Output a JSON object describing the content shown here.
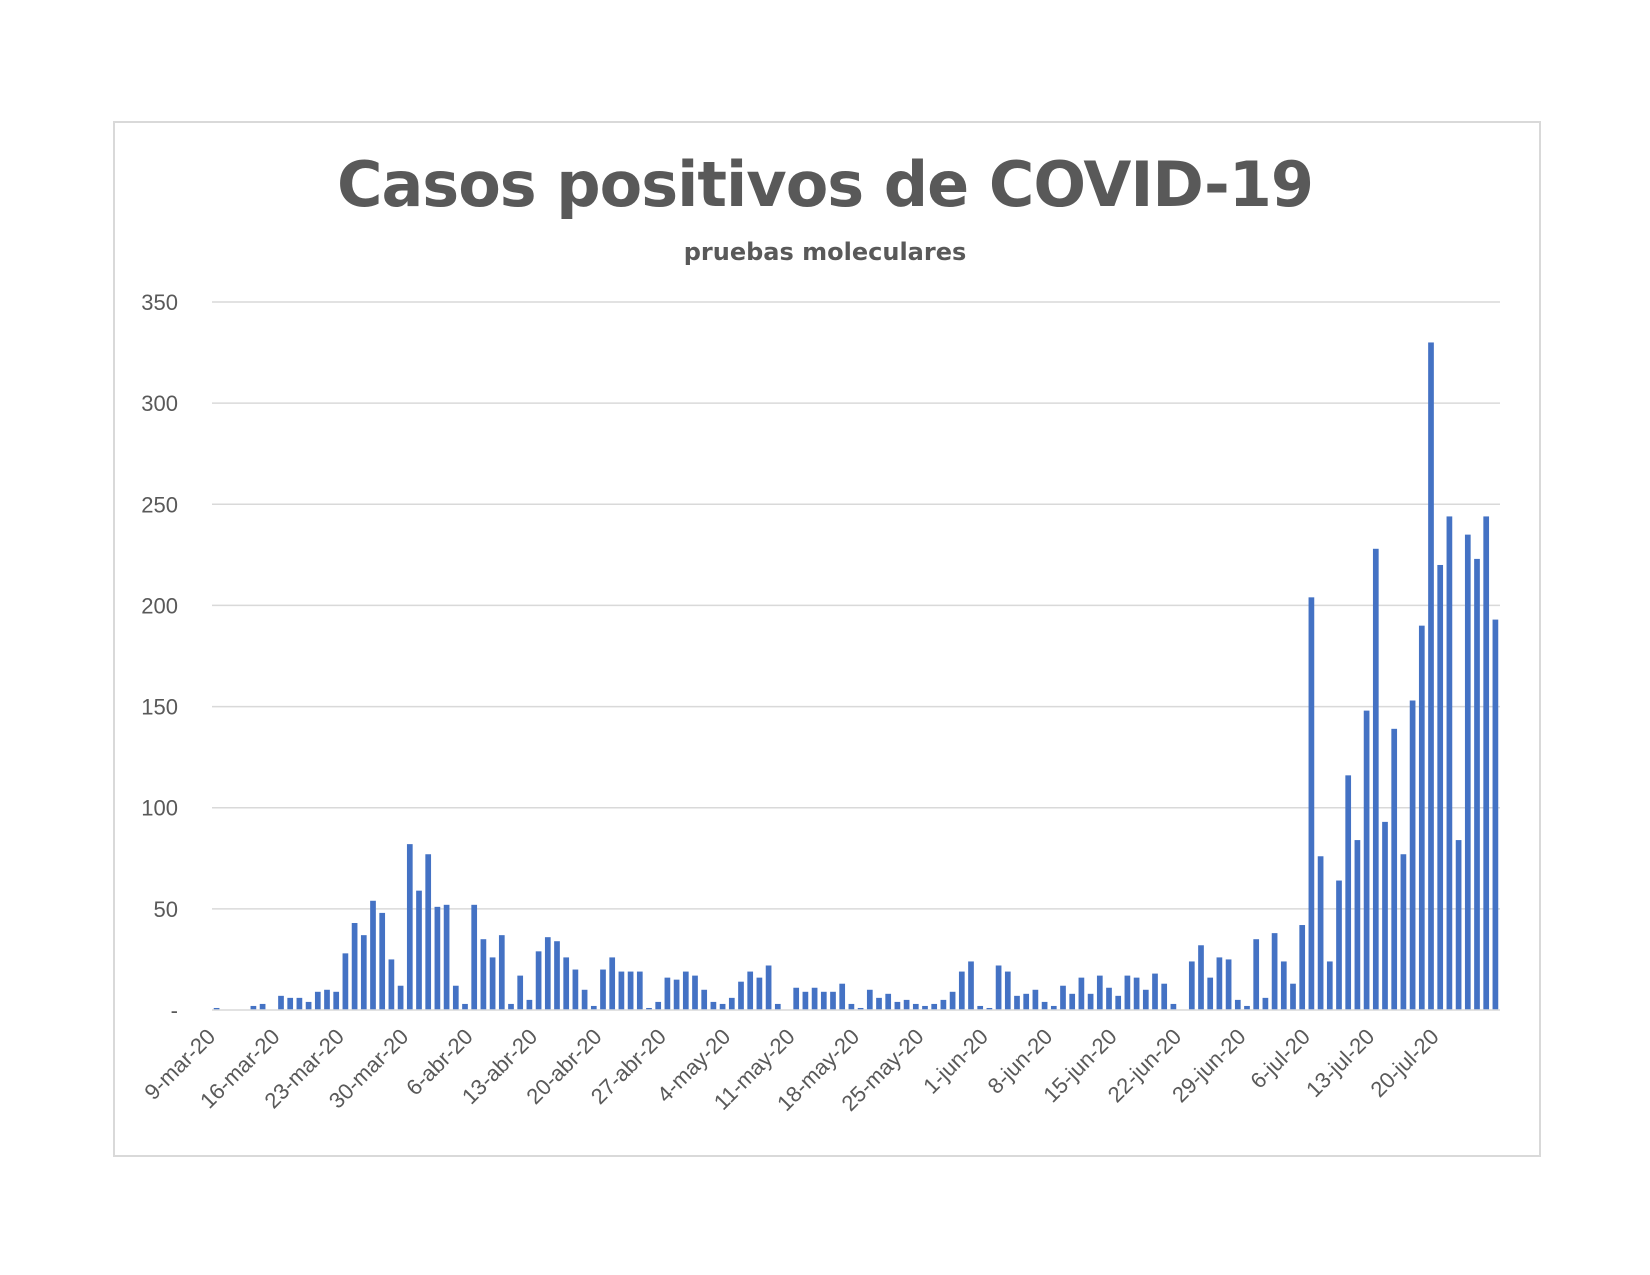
{
  "chart_data": {
    "type": "bar",
    "title": "Casos positivos de COVID-19",
    "subtitle": "pruebas moleculares",
    "xlabel": "",
    "ylabel": "",
    "ylim": [
      0,
      350
    ],
    "yticks": [
      0,
      50,
      100,
      150,
      200,
      250,
      300,
      350
    ],
    "ytick_labels": [
      "-",
      "50",
      "100",
      "150",
      "200",
      "250",
      "300",
      "350"
    ],
    "x_tick_labels": [
      "9-mar-20",
      "16-mar-20",
      "23-mar-20",
      "30-mar-20",
      "6-abr-20",
      "13-abr-20",
      "20-abr-20",
      "27-abr-20",
      "4-may-20",
      "11-may-20",
      "18-may-20",
      "25-may-20",
      "1-jun-20",
      "8-jun-20",
      "15-jun-20",
      "22-jun-20",
      "29-jun-20",
      "6-jul-20",
      "13-jul-20",
      "20-jul-20"
    ],
    "start_date": "2020-03-09",
    "grid": true,
    "legend": "none",
    "bar_color": "#4472c4",
    "values": [
      1,
      0,
      0,
      0,
      2,
      3,
      0,
      7,
      6,
      6,
      4,
      9,
      10,
      9,
      28,
      43,
      37,
      54,
      48,
      25,
      12,
      82,
      59,
      77,
      51,
      52,
      12,
      3,
      52,
      35,
      26,
      37,
      3,
      17,
      5,
      29,
      36,
      34,
      26,
      20,
      10,
      2,
      20,
      26,
      19,
      19,
      19,
      1,
      4,
      16,
      15,
      19,
      17,
      10,
      4,
      3,
      6,
      14,
      19,
      16,
      22,
      3,
      0,
      11,
      9,
      11,
      9,
      9,
      13,
      3,
      1,
      10,
      6,
      8,
      4,
      5,
      3,
      2,
      3,
      5,
      9,
      19,
      24,
      2,
      1,
      22,
      19,
      7,
      8,
      10,
      4,
      2,
      12,
      8,
      16,
      8,
      17,
      11,
      7,
      17,
      16,
      10,
      18,
      13,
      3,
      0,
      24,
      32,
      16,
      26,
      25,
      5,
      2,
      35,
      6,
      38,
      24,
      13,
      42,
      204,
      76,
      24,
      64,
      116,
      84,
      148,
      228,
      93,
      139,
      77,
      153,
      190,
      330,
      220,
      244,
      84,
      235,
      223,
      244,
      193
    ]
  }
}
